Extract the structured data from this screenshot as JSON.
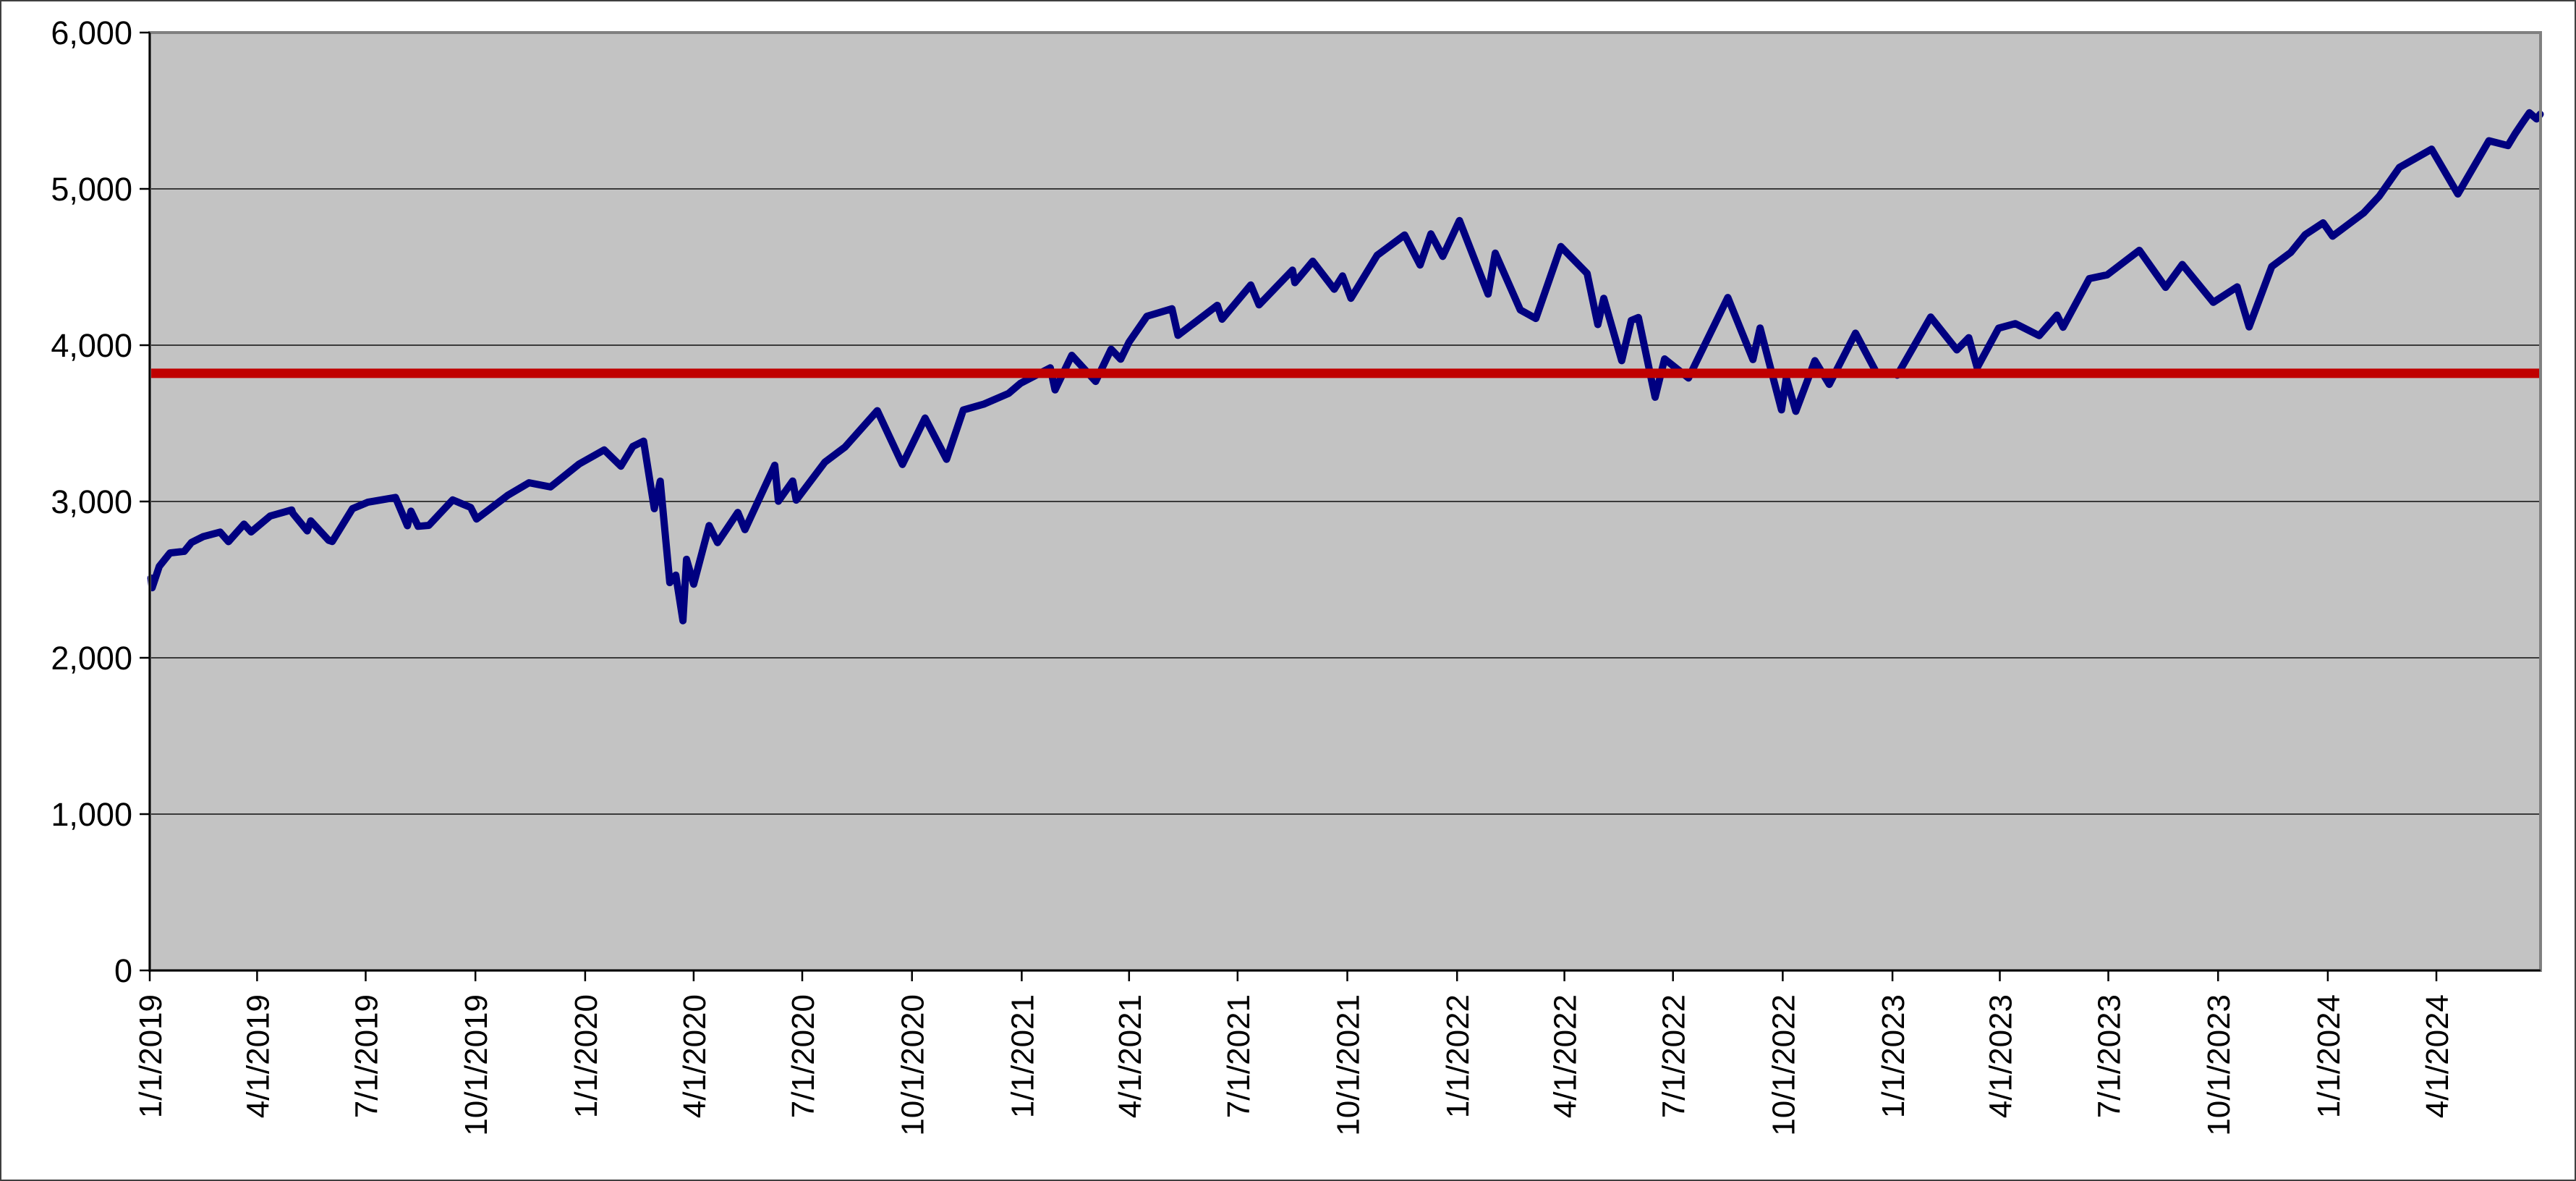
{
  "chart_data": {
    "type": "line",
    "title": "",
    "legend": "none",
    "grid": "horizontal-only",
    "plot": {
      "outer_background": "#ffffff",
      "plot_background": "#c3c3c3",
      "plot_border_color": "#808080",
      "outer_border_color": "#404040",
      "gridline_color": "#3a3a3a",
      "axis_color": "#000000",
      "tick_label_color": "#000000"
    },
    "y_axis": {
      "min": 0,
      "max": 6000,
      "tick_interval": 1000,
      "ticks": [
        {
          "label": "0",
          "value": 0
        },
        {
          "label": "1,000",
          "value": 1000
        },
        {
          "label": "2,000",
          "value": 2000
        },
        {
          "label": "3,000",
          "value": 3000
        },
        {
          "label": "4,000",
          "value": 4000
        },
        {
          "label": "5,000",
          "value": 5000
        },
        {
          "label": "6,000",
          "value": 6000
        }
      ]
    },
    "x_axis": {
      "start_date": "2019-01-01",
      "end_date": "2024-06-27",
      "ticks": [
        {
          "label": "1/1/2019",
          "date": "2019-01-01"
        },
        {
          "label": "4/1/2019",
          "date": "2019-04-01"
        },
        {
          "label": "7/1/2019",
          "date": "2019-07-01"
        },
        {
          "label": "10/1/2019",
          "date": "2019-10-01"
        },
        {
          "label": "1/1/2020",
          "date": "2020-01-01"
        },
        {
          "label": "4/1/2020",
          "date": "2020-04-01"
        },
        {
          "label": "7/1/2020",
          "date": "2020-07-01"
        },
        {
          "label": "10/1/2020",
          "date": "2020-10-01"
        },
        {
          "label": "1/1/2021",
          "date": "2021-01-01"
        },
        {
          "label": "4/1/2021",
          "date": "2021-04-01"
        },
        {
          "label": "7/1/2021",
          "date": "2021-07-01"
        },
        {
          "label": "10/1/2021",
          "date": "2021-10-01"
        },
        {
          "label": "1/1/2022",
          "date": "2022-01-01"
        },
        {
          "label": "4/1/2022",
          "date": "2022-04-01"
        },
        {
          "label": "7/1/2022",
          "date": "2022-07-01"
        },
        {
          "label": "10/1/2022",
          "date": "2022-10-01"
        },
        {
          "label": "1/1/2023",
          "date": "2023-01-01"
        },
        {
          "label": "4/1/2023",
          "date": "2023-04-01"
        },
        {
          "label": "7/1/2023",
          "date": "2023-07-01"
        },
        {
          "label": "10/1/2023",
          "date": "2023-10-01"
        },
        {
          "label": "1/1/2024",
          "date": "2024-01-01"
        },
        {
          "label": "4/1/2024",
          "date": "2024-04-01"
        }
      ]
    },
    "reference_line": {
      "value": 3820,
      "color": "#c00000",
      "stroke_width": 13
    },
    "series": [
      {
        "color": "#000080",
        "stroke_width": 10,
        "points": [
          [
            "2019-01-02",
            2510
          ],
          [
            "2019-01-03",
            2448
          ],
          [
            "2019-01-09",
            2585
          ],
          [
            "2019-01-18",
            2671
          ],
          [
            "2019-01-30",
            2681
          ],
          [
            "2019-02-05",
            2738
          ],
          [
            "2019-02-15",
            2776
          ],
          [
            "2019-03-01",
            2804
          ],
          [
            "2019-03-08",
            2743
          ],
          [
            "2019-03-21",
            2855
          ],
          [
            "2019-03-27",
            2805
          ],
          [
            "2019-04-12",
            2907
          ],
          [
            "2019-04-30",
            2946
          ],
          [
            "2019-05-01",
            2924
          ],
          [
            "2019-05-13",
            2812
          ],
          [
            "2019-05-16",
            2876
          ],
          [
            "2019-05-31",
            2752
          ],
          [
            "2019-06-03",
            2744
          ],
          [
            "2019-06-20",
            2954
          ],
          [
            "2019-07-03",
            2996
          ],
          [
            "2019-07-26",
            3026
          ],
          [
            "2019-08-05",
            2845
          ],
          [
            "2019-08-08",
            2938
          ],
          [
            "2019-08-14",
            2841
          ],
          [
            "2019-08-23",
            2847
          ],
          [
            "2019-09-12",
            3010
          ],
          [
            "2019-09-27",
            2962
          ],
          [
            "2019-10-02",
            2888
          ],
          [
            "2019-10-28",
            3039
          ],
          [
            "2019-11-15",
            3120
          ],
          [
            "2019-12-03",
            3093
          ],
          [
            "2019-12-27",
            3240
          ],
          [
            "2020-01-17",
            3330
          ],
          [
            "2020-01-31",
            3226
          ],
          [
            "2020-02-10",
            3352
          ],
          [
            "2020-02-19",
            3386
          ],
          [
            "2020-02-28",
            2954
          ],
          [
            "2020-03-04",
            3130
          ],
          [
            "2020-03-12",
            2481
          ],
          [
            "2020-03-17",
            2529
          ],
          [
            "2020-03-23",
            2237
          ],
          [
            "2020-03-26",
            2630
          ],
          [
            "2020-04-01",
            2471
          ],
          [
            "2020-04-14",
            2846
          ],
          [
            "2020-04-21",
            2737
          ],
          [
            "2020-05-08",
            2930
          ],
          [
            "2020-05-14",
            2820
          ],
          [
            "2020-06-08",
            3232
          ],
          [
            "2020-06-11",
            3002
          ],
          [
            "2020-06-23",
            3131
          ],
          [
            "2020-06-26",
            3009
          ],
          [
            "2020-07-20",
            3252
          ],
          [
            "2020-08-06",
            3349
          ],
          [
            "2020-09-02",
            3581
          ],
          [
            "2020-09-23",
            3237
          ],
          [
            "2020-10-12",
            3534
          ],
          [
            "2020-10-30",
            3270
          ],
          [
            "2020-11-13",
            3585
          ],
          [
            "2020-11-30",
            3622
          ],
          [
            "2020-12-21",
            3691
          ],
          [
            "2020-12-31",
            3756
          ],
          [
            "2021-01-25",
            3855
          ],
          [
            "2021-01-29",
            3714
          ],
          [
            "2021-02-12",
            3935
          ],
          [
            "2021-03-04",
            3768
          ],
          [
            "2021-03-17",
            3974
          ],
          [
            "2021-03-25",
            3910
          ],
          [
            "2021-04-01",
            4020
          ],
          [
            "2021-04-16",
            4185
          ],
          [
            "2021-05-07",
            4233
          ],
          [
            "2021-05-12",
            4063
          ],
          [
            "2021-06-14",
            4255
          ],
          [
            "2021-06-18",
            4166
          ],
          [
            "2021-07-12",
            4385
          ],
          [
            "2021-07-19",
            4258
          ],
          [
            "2021-08-16",
            4480
          ],
          [
            "2021-08-18",
            4400
          ],
          [
            "2021-09-02",
            4537
          ],
          [
            "2021-09-20",
            4358
          ],
          [
            "2021-09-27",
            4443
          ],
          [
            "2021-10-04",
            4300
          ],
          [
            "2021-10-26",
            4575
          ],
          [
            "2021-11-18",
            4705
          ],
          [
            "2021-12-01",
            4513
          ],
          [
            "2021-12-10",
            4712
          ],
          [
            "2021-12-20",
            4568
          ],
          [
            "2022-01-03",
            4797
          ],
          [
            "2022-01-27",
            4327
          ],
          [
            "2022-02-02",
            4589
          ],
          [
            "2022-02-23",
            4226
          ],
          [
            "2022-03-08",
            4171
          ],
          [
            "2022-03-29",
            4631
          ],
          [
            "2022-04-20",
            4459
          ],
          [
            "2022-04-29",
            4132
          ],
          [
            "2022-05-04",
            4300
          ],
          [
            "2022-05-19",
            3901
          ],
          [
            "2022-05-27",
            4158
          ],
          [
            "2022-06-02",
            4177
          ],
          [
            "2022-06-16",
            3667
          ],
          [
            "2022-06-24",
            3912
          ],
          [
            "2022-07-14",
            3790
          ],
          [
            "2022-08-16",
            4305
          ],
          [
            "2022-09-06",
            3908
          ],
          [
            "2022-09-12",
            4110
          ],
          [
            "2022-09-30",
            3586
          ],
          [
            "2022-10-04",
            3791
          ],
          [
            "2022-10-12",
            3577
          ],
          [
            "2022-10-28",
            3901
          ],
          [
            "2022-11-09",
            3749
          ],
          [
            "2022-12-01",
            4077
          ],
          [
            "2022-12-19",
            3818
          ],
          [
            "2023-01-03",
            3824
          ],
          [
            "2023-01-05",
            3808
          ],
          [
            "2023-02-02",
            4180
          ],
          [
            "2023-02-24",
            3970
          ],
          [
            "2023-03-06",
            4048
          ],
          [
            "2023-03-13",
            3856
          ],
          [
            "2023-03-31",
            4109
          ],
          [
            "2023-04-14",
            4138
          ],
          [
            "2023-05-04",
            4061
          ],
          [
            "2023-05-19",
            4192
          ],
          [
            "2023-05-24",
            4115
          ],
          [
            "2023-06-15",
            4426
          ],
          [
            "2023-06-30",
            4450
          ],
          [
            "2023-07-27",
            4607
          ],
          [
            "2023-08-18",
            4370
          ],
          [
            "2023-09-01",
            4516
          ],
          [
            "2023-09-27",
            4274
          ],
          [
            "2023-10-17",
            4373
          ],
          [
            "2023-10-27",
            4117
          ],
          [
            "2023-11-15",
            4503
          ],
          [
            "2023-12-01",
            4594
          ],
          [
            "2023-12-13",
            4707
          ],
          [
            "2023-12-28",
            4783
          ],
          [
            "2024-01-05",
            4697
          ],
          [
            "2024-01-31",
            4846
          ],
          [
            "2024-02-13",
            4953
          ],
          [
            "2024-03-01",
            5137
          ],
          [
            "2024-03-28",
            5254
          ],
          [
            "2024-04-19",
            4967
          ],
          [
            "2024-05-15",
            5308
          ],
          [
            "2024-05-31",
            5277
          ],
          [
            "2024-06-06",
            5353
          ],
          [
            "2024-06-12",
            5421
          ],
          [
            "2024-06-18",
            5487
          ],
          [
            "2024-06-24",
            5447
          ],
          [
            "2024-06-27",
            5478
          ]
        ]
      }
    ]
  }
}
